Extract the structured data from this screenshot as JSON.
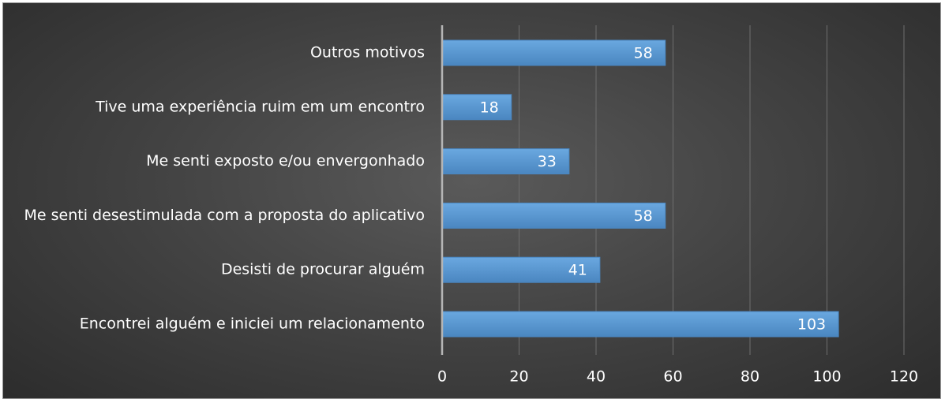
{
  "chart_data": {
    "type": "bar",
    "orientation": "horizontal",
    "categories": [
      "Outros motivos",
      "Tive uma experiência ruim em um encontro",
      "Me senti exposto e/ou envergonhado",
      "Me senti desestimulada com a proposta do aplicativo",
      "Desisti de procurar alguém",
      "Encontrei alguém e iniciei um relacionamento"
    ],
    "values": [
      58,
      18,
      33,
      58,
      41,
      103
    ],
    "xlim": [
      0,
      120
    ],
    "xticks": [
      0,
      20,
      40,
      60,
      80,
      100,
      120
    ],
    "title": "",
    "xlabel": "",
    "ylabel": "",
    "grid": true,
    "legend": "none",
    "data_labels": true,
    "colors": {
      "bar": "#5b9bd5",
      "bar_dark": "#4a86c0",
      "text": "#ffffff",
      "gridline": "#6e6e6e",
      "axis": "#b5b5b5"
    }
  }
}
